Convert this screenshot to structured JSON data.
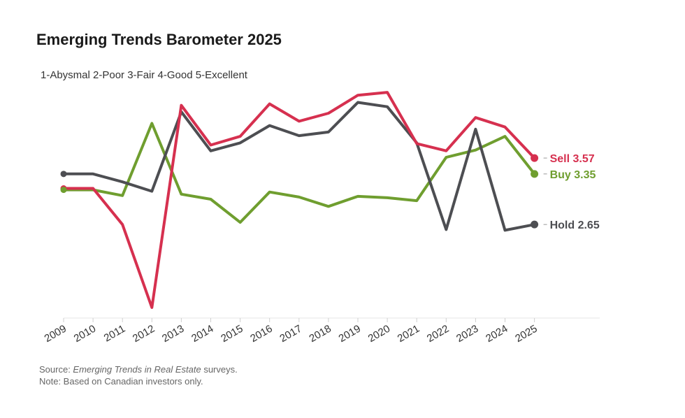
{
  "chart_data": {
    "type": "line",
    "title": "Emerging Trends Barometer 2025",
    "subtitle": "1-Abysmal 2-Poor 3-Fair 4-Good 5-Excellent",
    "x": [
      "2009",
      "2010",
      "2011",
      "2012",
      "2013",
      "2014",
      "2015",
      "2016",
      "2017",
      "2018",
      "2019",
      "2020",
      "2021",
      "2022",
      "2023",
      "2024",
      "2025"
    ],
    "ylim": [
      1.5,
      4.5
    ],
    "xlabel": "",
    "ylabel": "",
    "grid": false,
    "series": [
      {
        "name": "Sell",
        "label": "Sell 3.57",
        "color": "#d6304f",
        "values": [
          3.15,
          3.15,
          2.65,
          1.5,
          4.3,
          3.75,
          3.87,
          4.32,
          4.08,
          4.19,
          4.44,
          4.48,
          3.77,
          3.67,
          4.13,
          4.0,
          3.57
        ]
      },
      {
        "name": "Buy",
        "label": "Buy 3.35",
        "color": "#6f9e2f",
        "values": [
          3.13,
          3.13,
          3.05,
          4.05,
          3.07,
          3.0,
          2.68,
          3.1,
          3.03,
          2.9,
          3.04,
          3.02,
          2.98,
          3.58,
          3.68,
          3.87,
          3.35
        ]
      },
      {
        "name": "Hold",
        "label": "Hold 2.65",
        "color": "#4d4e52",
        "values": [
          3.35,
          3.35,
          3.24,
          3.11,
          4.21,
          3.67,
          3.78,
          4.02,
          3.88,
          3.93,
          4.34,
          4.28,
          3.78,
          2.58,
          3.97,
          2.57,
          2.65
        ]
      }
    ]
  },
  "footer": {
    "source_prefix": "Source: ",
    "source_italic": "Emerging Trends in Real Estate",
    "source_suffix": " surveys.",
    "note": "Note: Based on Canadian investors only."
  }
}
